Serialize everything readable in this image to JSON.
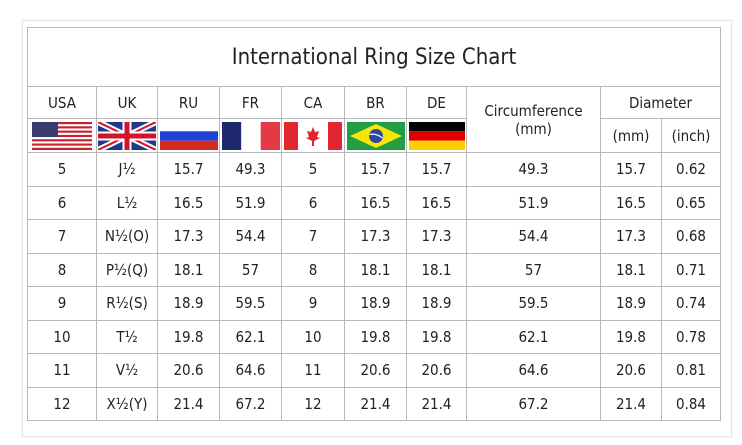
{
  "title": "International Ring Size Chart",
  "headers": {
    "usa": "USA",
    "uk": "UK",
    "ru": "RU",
    "fr": "FR",
    "ca": "CA",
    "br": "BR",
    "de": "DE",
    "circumference": "Circumference",
    "circumference_unit": "(mm)",
    "diameter": "Diameter",
    "diameter_mm": "(mm)",
    "diameter_inch": "(inch)"
  },
  "flags": [
    "usa-flag-icon",
    "uk-flag-icon",
    "russia-flag-icon",
    "france-flag-icon",
    "canada-flag-icon",
    "brazil-flag-icon",
    "germany-flag-icon"
  ],
  "rows": [
    [
      "5",
      "J½",
      "15.7",
      "49.3",
      "5",
      "15.7",
      "15.7",
      "49.3",
      "15.7",
      "0.62"
    ],
    [
      "6",
      "L½",
      "16.5",
      "51.9",
      "6",
      "16.5",
      "16.5",
      "51.9",
      "16.5",
      "0.65"
    ],
    [
      "7",
      "N½(O)",
      "17.3",
      "54.4",
      "7",
      "17.3",
      "17.3",
      "54.4",
      "17.3",
      "0.68"
    ],
    [
      "8",
      "P½(Q)",
      "18.1",
      "57",
      "8",
      "18.1",
      "18.1",
      "57",
      "18.1",
      "0.71"
    ],
    [
      "9",
      "R½(S)",
      "18.9",
      "59.5",
      "9",
      "18.9",
      "18.9",
      "59.5",
      "18.9",
      "0.74"
    ],
    [
      "10",
      "T½",
      "19.8",
      "62.1",
      "10",
      "19.8",
      "19.8",
      "62.1",
      "19.8",
      "0.78"
    ],
    [
      "11",
      "V½",
      "20.6",
      "64.6",
      "11",
      "20.6",
      "20.6",
      "64.6",
      "20.6",
      "0.81"
    ],
    [
      "12",
      "X½(Y)",
      "21.4",
      "67.2",
      "12",
      "21.4",
      "21.4",
      "67.2",
      "21.4",
      "0.84"
    ]
  ]
}
